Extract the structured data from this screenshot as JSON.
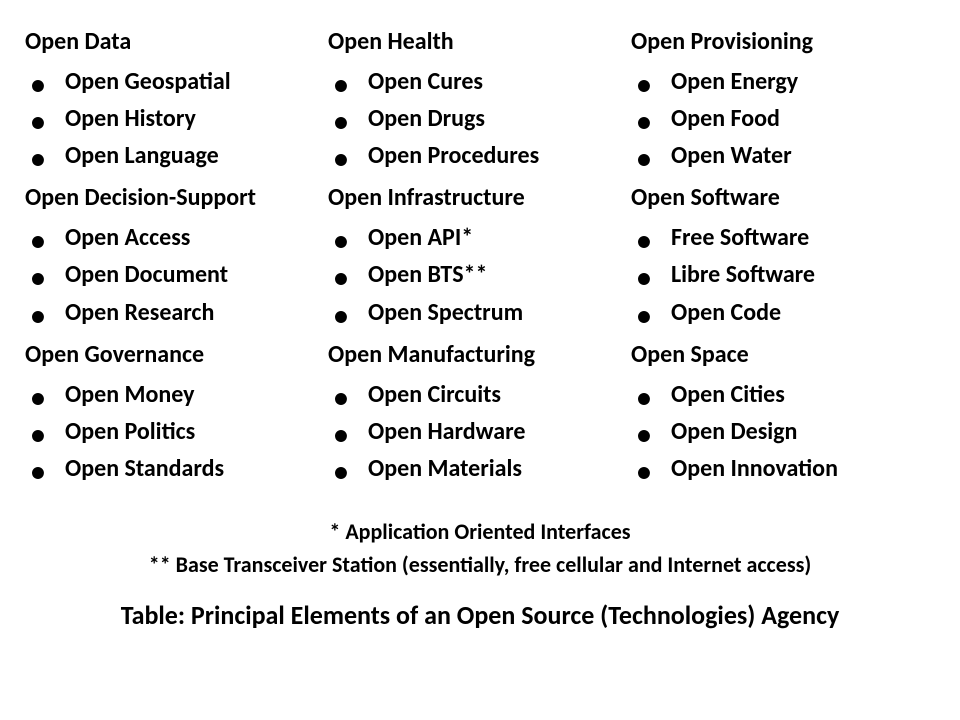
{
  "background_color": "#ffffff",
  "text_color": "#000000",
  "font_family": "Calibri, Arial, sans-serif",
  "heading_fontsize": 24,
  "item_fontsize": 24,
  "footnote_fontsize": 22,
  "title_fontsize": 26,
  "columns": [
    {
      "groups": [
        {
          "heading": "Open Data",
          "items": [
            "Open Geospatial",
            "Open History",
            "Open Language"
          ]
        },
        {
          "heading": "Open Decision-Support",
          "items": [
            "Open Access",
            "Open Document",
            "Open Research"
          ]
        },
        {
          "heading": "Open Governance",
          "items": [
            "Open Money",
            "Open Politics",
            "Open Standards"
          ]
        }
      ]
    },
    {
      "groups": [
        {
          "heading": "Open Health",
          "items": [
            "Open Cures",
            "Open Drugs",
            "Open Procedures"
          ]
        },
        {
          "heading": "Open Infrastructure",
          "items": [
            "Open API*",
            "Open BTS**",
            "Open Spectrum"
          ]
        },
        {
          "heading": "Open Manufacturing",
          "items": [
            "Open Circuits",
            "Open Hardware",
            "Open Materials"
          ]
        }
      ]
    },
    {
      "groups": [
        {
          "heading": "Open Provisioning",
          "items": [
            "Open Energy",
            "Open Food",
            "Open Water"
          ]
        },
        {
          "heading": "Open Software",
          "items": [
            "Free Software",
            "Libre Software",
            "Open Code"
          ]
        },
        {
          "heading": "Open Space",
          "items": [
            "Open Cities",
            "Open Design",
            "Open Innovation"
          ]
        }
      ]
    }
  ],
  "footnotes": [
    "* Application Oriented Interfaces",
    "** Base Transceiver Station (essentially, free cellular and Internet access)"
  ],
  "title": "Table: Principal Elements of an Open Source (Technologies) Agency"
}
